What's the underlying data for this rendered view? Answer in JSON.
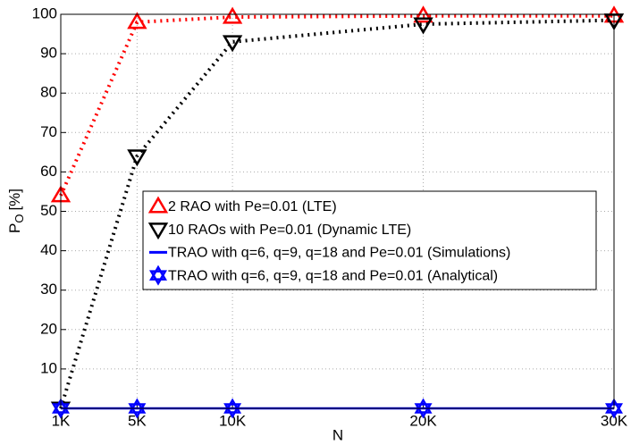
{
  "chart_data": {
    "type": "line",
    "x_label": "N",
    "y_label": "P",
    "y_label_subscript": "O",
    "y_label_suffix": "[%]",
    "x": [
      1000,
      5000,
      10000,
      20000,
      30000
    ],
    "xlim": [
      1000,
      30000
    ],
    "xticks": [
      {
        "value": 1000,
        "label": "1K"
      },
      {
        "value": 5000,
        "label": "5K"
      },
      {
        "value": 10000,
        "label": "10K"
      },
      {
        "value": 20000,
        "label": "20K"
      },
      {
        "value": 30000,
        "label": "30K"
      }
    ],
    "ylim": [
      0,
      100
    ],
    "yticks": [
      10,
      20,
      30,
      40,
      50,
      60,
      70,
      80,
      90,
      100
    ],
    "grid": true,
    "legend": "center",
    "series": [
      {
        "name": "2 RAO with Pe=0.01 (LTE)",
        "color": "#ff0000",
        "line": "dotted",
        "marker": "triangle-up",
        "values": [
          54,
          98,
          99.3,
          99.6,
          99.6
        ]
      },
      {
        "name": "10 RAOs with Pe=0.01 (Dynamic LTE)",
        "color": "#000000",
        "line": "dotted",
        "marker": "triangle-down",
        "values": [
          0,
          64,
          93,
          97.5,
          98.5
        ]
      },
      {
        "name": "TRAO with q=6, q=9, q=18 and Pe=0.01 (Simulations)",
        "color": "#0000ff",
        "line": "solid",
        "marker": "none",
        "values": [
          0,
          0,
          0,
          0,
          0
        ]
      },
      {
        "name": "TRAO with q=6, q=9, q=18 and Pe=0.01 (Analytical)",
        "color": "#0000ff",
        "line": "none",
        "marker": "hexagram",
        "values": [
          0,
          0,
          0,
          0,
          0
        ]
      }
    ]
  }
}
